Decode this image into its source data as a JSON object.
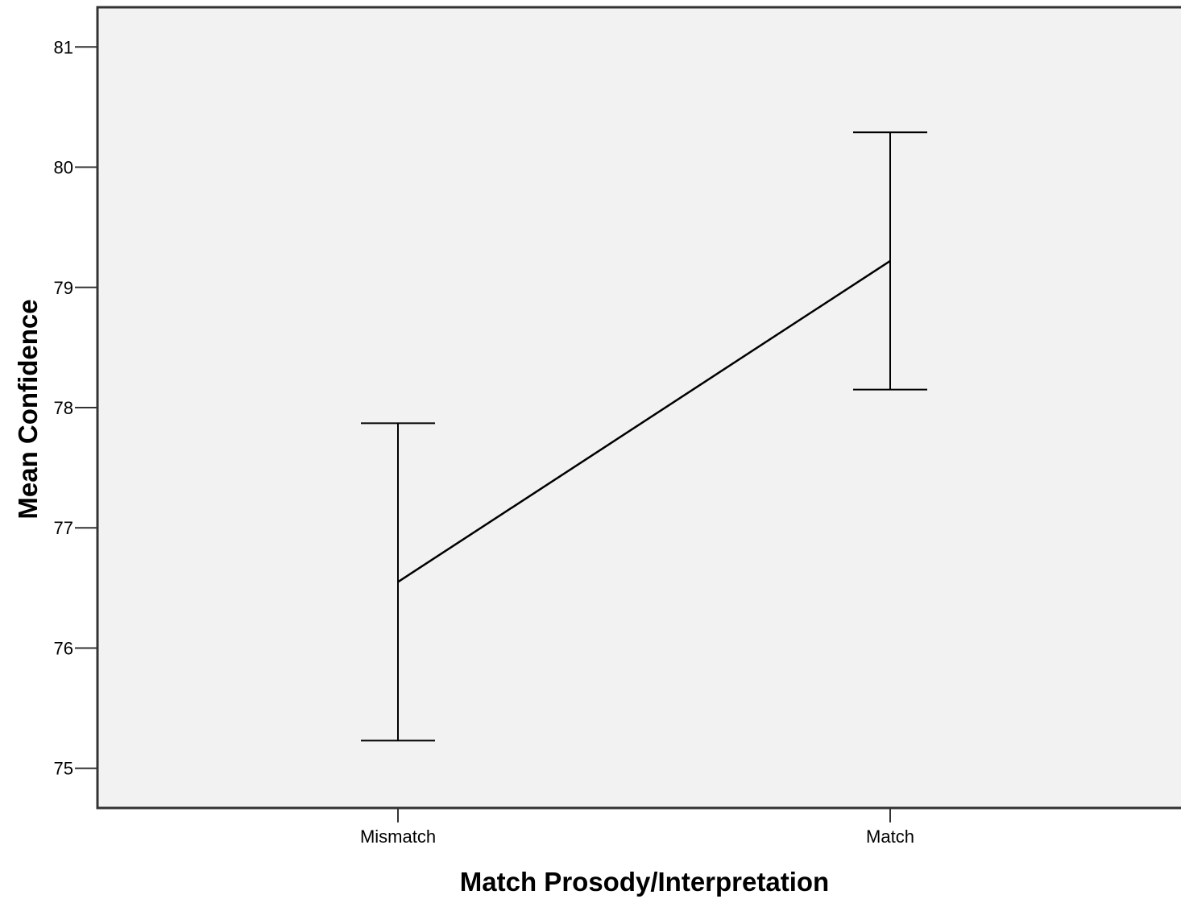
{
  "chart_data": {
    "type": "line",
    "title": "",
    "xlabel": "Match Prosody/Interpretation",
    "ylabel": "Mean Confidence",
    "categories": [
      "Mismatch",
      "Match"
    ],
    "series": [
      {
        "values": [
          76.55,
          79.22
        ],
        "error_low": [
          75.23,
          78.15
        ],
        "error_high": [
          77.87,
          80.29
        ]
      }
    ],
    "ylim": [
      74.67,
      81.33
    ],
    "yticks": [
      75,
      76,
      77,
      78,
      79,
      80,
      81
    ],
    "grid": false,
    "legend": "none",
    "colors": {
      "plot_background": "#f2f2f2",
      "line": "#000000",
      "axis": "#333333"
    }
  }
}
